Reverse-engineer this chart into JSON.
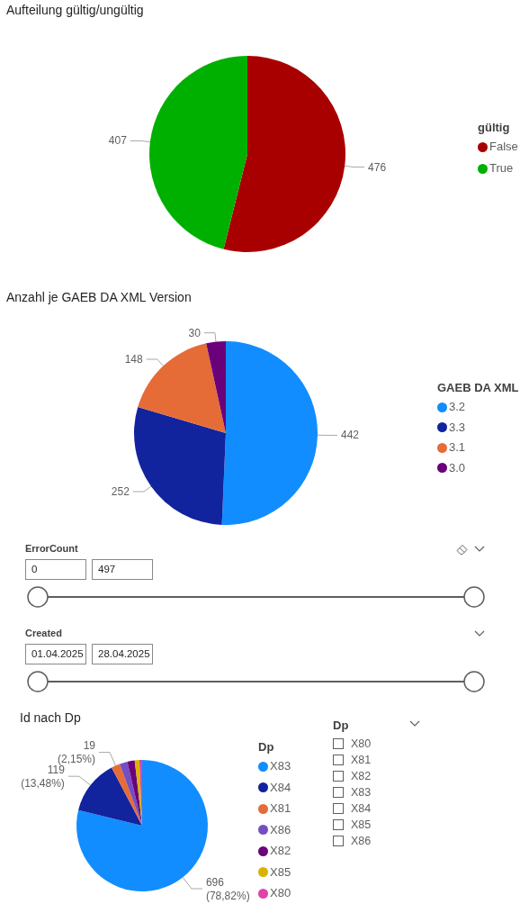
{
  "chart_data": [
    {
      "type": "pie",
      "title": "Aufteilung gültig/ungültig",
      "categories": [
        "False",
        "True"
      ],
      "values": [
        476,
        407
      ],
      "colors": [
        "#a80000",
        "#00b000"
      ],
      "data_labels": true,
      "legend": "right",
      "legend_title": "gültig"
    },
    {
      "type": "pie",
      "title": "Anzahl je GAEB DA XML Version",
      "categories": [
        "3.2",
        "3.3",
        "3.1",
        "3.0"
      ],
      "values": [
        442,
        252,
        148,
        30
      ],
      "colors": [
        "#118dff",
        "#12239e",
        "#e66c37",
        "#6b007b"
      ],
      "data_labels": true,
      "legend": "right",
      "legend_title": "GAEB DA XML"
    },
    {
      "type": "other",
      "title": "ErrorCount",
      "annotations": [
        "0",
        "497"
      ]
    },
    {
      "type": "other",
      "title": "Created",
      "annotations": [
        "01.04.2025",
        "28.04.2025"
      ]
    },
    {
      "type": "pie",
      "title": "Id nach Dp",
      "categories": [
        "X83",
        "X84",
        "X81",
        "X86",
        "X82",
        "X85",
        "X80"
      ],
      "values": [
        696,
        119,
        19,
        17,
        16,
        10,
        6
      ],
      "colors": [
        "#118dff",
        "#12239e",
        "#e66c37",
        "#744ec2",
        "#6b007b",
        "#d9b300",
        "#e044a7"
      ],
      "value_labels": [
        "696\n(78,82%)",
        "119\n(13,48%)",
        "19\n(2,15%)",
        null,
        null,
        null,
        null
      ],
      "legend": "right",
      "legend_title": "Dp"
    },
    {
      "type": "other",
      "title": "Dp",
      "categories": [
        "X80",
        "X81",
        "X82",
        "X83",
        "X84",
        "X85",
        "X86"
      ]
    }
  ]
}
